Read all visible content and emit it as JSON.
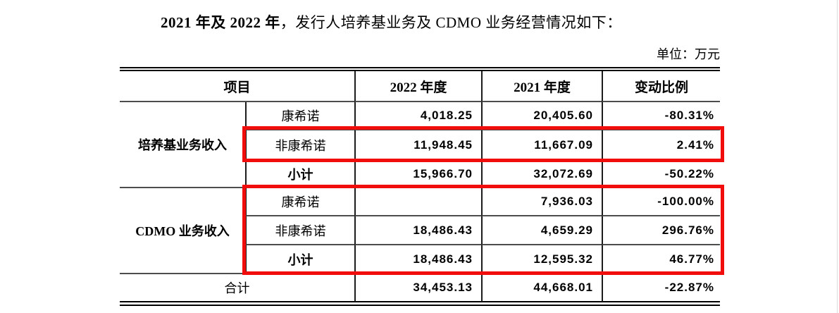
{
  "title": {
    "bold": "2021 年及 2022 年",
    "rest": "，发行人培养基业务及 CDMO 业务经营情况如下："
  },
  "unit_label": "单位：万元",
  "table": {
    "header": {
      "item": "项目",
      "y2022": "2022 年度",
      "y2021": "2021 年度",
      "change": "变动比例"
    },
    "groups": [
      {
        "name": "培养基业务收入",
        "rows": [
          {
            "label": "康希诺",
            "y2022": "4,018.25",
            "y2021": "20,405.60",
            "change": "-80.31%"
          },
          {
            "label": "非康希诺",
            "y2022": "11,948.45",
            "y2021": "11,667.09",
            "change": "2.41%"
          },
          {
            "label": "小计",
            "y2022": "15,966.70",
            "y2021": "32,072.69",
            "change": "-50.22%"
          }
        ]
      },
      {
        "name": "CDMO 业务收入",
        "rows": [
          {
            "label": "康希诺",
            "y2022": "",
            "y2021": "7,936.03",
            "change": "-100.00%"
          },
          {
            "label": "非康希诺",
            "y2022": "18,486.43",
            "y2021": "4,659.29",
            "change": "296.76%"
          },
          {
            "label": "小计",
            "y2022": "18,486.43",
            "y2021": "12,595.32",
            "change": "46.77%"
          }
        ]
      }
    ],
    "total": {
      "label": "合计",
      "y2022": "34,453.13",
      "y2021": "44,668.01",
      "change": "-22.87%"
    }
  },
  "annotations": {
    "highlight_color": "#f20d0d",
    "boxes": [
      "media-business-non-cansino-row",
      "cdmo-business-all-rows"
    ]
  }
}
